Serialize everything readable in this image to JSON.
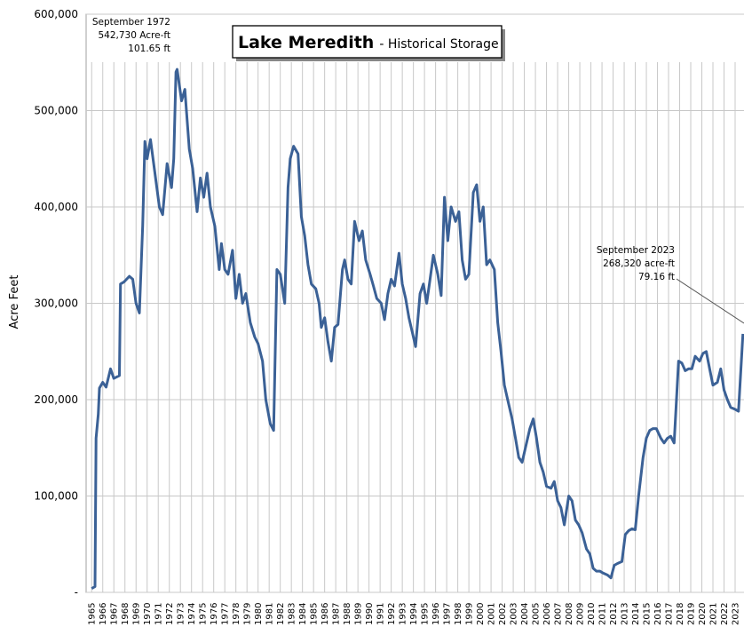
{
  "chart_data": {
    "type": "line",
    "title": "Lake Meredith",
    "subtitle": "- Historical Storage",
    "y_label": "Acre Feet",
    "annotations": [
      {
        "lines": [
          "September 1972",
          "542,730 Acre-ft",
          "101.65 ft"
        ]
      },
      {
        "lines": [
          "September 2023",
          "268,320 acre-ft",
          "79.16 ft"
        ]
      }
    ],
    "grid": true,
    "xlim": [
      1964.5,
      2023.8
    ],
    "ylim": [
      0,
      600000
    ],
    "yticks": [
      {
        "value": 0,
        "label": "-"
      },
      {
        "value": 100000,
        "label": "100,000"
      },
      {
        "value": 200000,
        "label": "200,000"
      },
      {
        "value": 300000,
        "label": "300,000"
      },
      {
        "value": 400000,
        "label": "400,000"
      },
      {
        "value": 500000,
        "label": "500,000"
      },
      {
        "value": 600000,
        "label": "600,000"
      }
    ],
    "xticks": [
      1965,
      1966,
      1967,
      1968,
      1969,
      1970,
      1971,
      1972,
      1973,
      1974,
      1975,
      1976,
      1977,
      1978,
      1979,
      1980,
      1981,
      1982,
      1983,
      1984,
      1985,
      1986,
      1987,
      1988,
      1989,
      1990,
      1991,
      1992,
      1993,
      1994,
      1995,
      1996,
      1997,
      1998,
      1999,
      2000,
      2001,
      2002,
      2003,
      2004,
      2005,
      2006,
      2007,
      2008,
      2009,
      2010,
      2011,
      2012,
      2013,
      2014,
      2015,
      2016,
      2017,
      2018,
      2019,
      2020,
      2021,
      2022,
      2023
    ],
    "x": [
      1965.0,
      1965.3,
      1965.4,
      1965.6,
      1965.7,
      1966.0,
      1966.3,
      1966.7,
      1967.0,
      1967.5,
      1967.6,
      1967.9,
      1968.4,
      1968.7,
      1969.0,
      1969.3,
      1969.6,
      1969.8,
      1970.0,
      1970.3,
      1970.7,
      1971.1,
      1971.4,
      1971.8,
      1972.2,
      1972.4,
      1972.6,
      1972.7,
      1973.1,
      1973.4,
      1973.8,
      1974.1,
      1974.5,
      1974.8,
      1975.1,
      1975.4,
      1975.7,
      1976.1,
      1976.5,
      1976.7,
      1977.0,
      1977.3,
      1977.7,
      1978.0,
      1978.3,
      1978.6,
      1978.9,
      1979.3,
      1979.7,
      1980.0,
      1980.4,
      1980.7,
      1981.1,
      1981.4,
      1981.7,
      1982.0,
      1982.4,
      1982.7,
      1982.9,
      1983.2,
      1983.6,
      1983.9,
      1984.2,
      1984.5,
      1984.8,
      1985.2,
      1985.5,
      1985.7,
      1986.0,
      1986.3,
      1986.6,
      1986.9,
      1987.2,
      1987.6,
      1987.8,
      1988.1,
      1988.4,
      1988.7,
      1989.1,
      1989.4,
      1989.7,
      1990.1,
      1990.4,
      1990.7,
      1991.1,
      1991.4,
      1991.7,
      1992.0,
      1992.3,
      1992.7,
      1993.0,
      1993.3,
      1993.6,
      1993.9,
      1994.2,
      1994.6,
      1994.9,
      1995.2,
      1995.5,
      1995.8,
      1996.2,
      1996.5,
      1996.8,
      1997.1,
      1997.4,
      1997.8,
      1998.1,
      1998.4,
      1998.7,
      1999.0,
      1999.4,
      1999.7,
      2000.0,
      2000.3,
      2000.6,
      2000.9,
      2001.3,
      2001.6,
      2001.9,
      2002.2,
      2002.5,
      2002.9,
      2003.2,
      2003.5,
      2003.8,
      2004.1,
      2004.5,
      2004.8,
      2005.1,
      2005.4,
      2005.7,
      2006.0,
      2006.4,
      2006.7,
      2007.0,
      2007.3,
      2007.6,
      2008.0,
      2008.3,
      2008.6,
      2008.9,
      2009.2,
      2009.6,
      2009.9,
      2010.2,
      2010.5,
      2010.8,
      2011.1,
      2011.5,
      2011.8,
      2012.1,
      2012.4,
      2012.8,
      2013.1,
      2013.4,
      2013.7,
      2014.0,
      2014.3,
      2014.7,
      2015.0,
      2015.3,
      2015.6,
      2015.9,
      2016.3,
      2016.6,
      2016.9,
      2017.2,
      2017.5,
      2017.9,
      2018.2,
      2018.5,
      2018.8,
      2019.1,
      2019.4,
      2019.8,
      2020.1,
      2020.4,
      2020.7,
      2021.0,
      2021.4,
      2021.7,
      2022.0,
      2022.3,
      2022.6,
      2023.0,
      2023.3,
      2023.7
    ],
    "series": [
      {
        "name": "Historical Storage",
        "color": "#3b6196",
        "values": [
          4000,
          6000,
          160000,
          185000,
          212000,
          218000,
          213000,
          232000,
          222000,
          225000,
          320000,
          322000,
          328000,
          325000,
          300000,
          290000,
          380000,
          468000,
          450000,
          470000,
          435000,
          400000,
          392000,
          445000,
          420000,
          450000,
          540000,
          542730,
          510000,
          522000,
          460000,
          440000,
          395000,
          430000,
          410000,
          435000,
          400000,
          380000,
          335000,
          362000,
          335000,
          330000,
          355000,
          305000,
          330000,
          300000,
          310000,
          280000,
          265000,
          258000,
          240000,
          200000,
          175000,
          168000,
          335000,
          330000,
          300000,
          420000,
          450000,
          463000,
          455000,
          390000,
          370000,
          340000,
          320000,
          315000,
          300000,
          275000,
          285000,
          260000,
          240000,
          275000,
          278000,
          335000,
          345000,
          325000,
          320000,
          385000,
          365000,
          375000,
          345000,
          330000,
          318000,
          305000,
          300000,
          283000,
          310000,
          325000,
          318000,
          352000,
          320000,
          305000,
          285000,
          270000,
          255000,
          310000,
          320000,
          300000,
          325000,
          350000,
          330000,
          308000,
          410000,
          365000,
          400000,
          385000,
          395000,
          345000,
          325000,
          330000,
          415000,
          423000,
          385000,
          400000,
          340000,
          345000,
          335000,
          280000,
          250000,
          215000,
          200000,
          180000,
          160000,
          140000,
          135000,
          150000,
          170000,
          180000,
          160000,
          135000,
          125000,
          110000,
          108000,
          115000,
          95000,
          88000,
          70000,
          100000,
          95000,
          75000,
          70000,
          62000,
          45000,
          40000,
          25000,
          22000,
          22000,
          20000,
          18000,
          15000,
          28000,
          30000,
          32000,
          60000,
          64000,
          66000,
          65000,
          100000,
          140000,
          160000,
          168000,
          170000,
          170000,
          160000,
          155000,
          160000,
          162000,
          155000,
          240000,
          238000,
          230000,
          232000,
          232000,
          245000,
          240000,
          248000,
          250000,
          232000,
          215000,
          218000,
          232000,
          210000,
          200000,
          192000,
          190000,
          188000,
          268320
        ]
      }
    ]
  }
}
